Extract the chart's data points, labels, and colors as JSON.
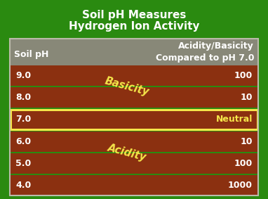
{
  "title_line1": "Soil pH Measures",
  "title_line2": "Hydrogen Ion Activity",
  "title_color": "#ffffff",
  "title_fontsize": 11,
  "bg_color": "#2a8a10",
  "header_bg": "#888878",
  "header_text_color": "#ffffff",
  "row_bg": "#8B3010",
  "row_sep_color": "#5a1a00",
  "row_text_color": "#ffffff",
  "neutral_row_border": "#f5e64a",
  "neutral_text_color": "#f5e64a",
  "diagonal_text_color": "#f5e64a",
  "col1_header": "Soil pH",
  "col2_header_line1": "Acidity/Basicity",
  "col2_header_line2": "Compared to pH 7.0",
  "basicity_text": "Basicity",
  "acidity_text": "Acidity",
  "rows": [
    {
      "ph": "9.0",
      "value": "100",
      "neutral": false
    },
    {
      "ph": "8.0",
      "value": "10",
      "neutral": false
    },
    {
      "ph": "7.0",
      "value": "Neutral",
      "neutral": true
    },
    {
      "ph": "6.0",
      "value": "10",
      "neutral": false
    },
    {
      "ph": "5.0",
      "value": "100",
      "neutral": false
    },
    {
      "ph": "4.0",
      "value": "1000",
      "neutral": false
    }
  ]
}
